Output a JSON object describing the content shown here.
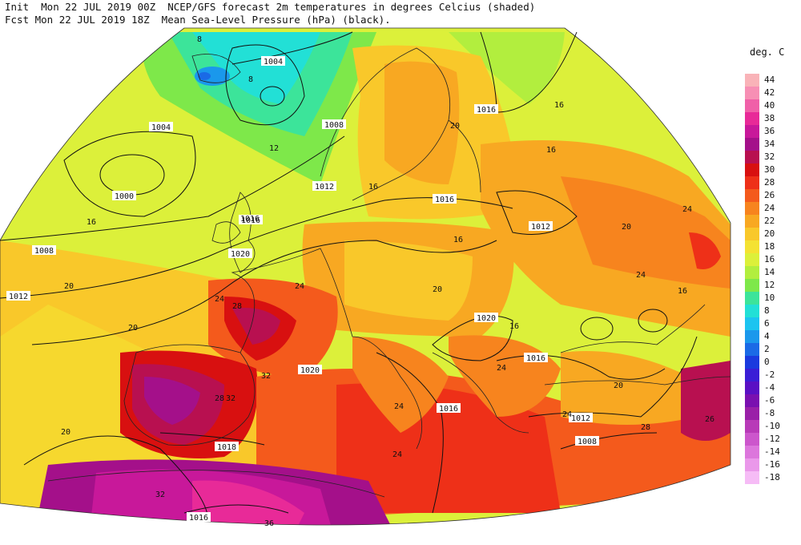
{
  "header": {
    "line1": "Init  Mon 22 JUL 2019 00Z  NCEP/GFS forecast 2m temperatures in degrees Celcius (shaded)",
    "line2": "Fcst Mon 22 JUL 2019 18Z  Mean Sea-Level Pressure (hPa) (black)."
  },
  "legend": {
    "title": "deg. C",
    "entries": [
      {
        "label": "44",
        "color": "#f9b3b8"
      },
      {
        "label": "42",
        "color": "#f78fb4"
      },
      {
        "label": "40",
        "color": "#f060a8"
      },
      {
        "label": "38",
        "color": "#e82a98"
      },
      {
        "label": "36",
        "color": "#c8189a"
      },
      {
        "label": "34",
        "color": "#a4108a"
      },
      {
        "label": "32",
        "color": "#b81050"
      },
      {
        "label": "30",
        "color": "#d81010"
      },
      {
        "label": "28",
        "color": "#ee3018"
      },
      {
        "label": "26",
        "color": "#f45a1c"
      },
      {
        "label": "24",
        "color": "#f7841e"
      },
      {
        "label": "22",
        "color": "#f8a822"
      },
      {
        "label": "20",
        "color": "#f9c82a"
      },
      {
        "label": "18",
        "color": "#f4e232"
      },
      {
        "label": "16",
        "color": "#dcf03a"
      },
      {
        "label": "14",
        "color": "#b2ee3e"
      },
      {
        "label": "12",
        "color": "#7ee84a"
      },
      {
        "label": "10",
        "color": "#3ce49a"
      },
      {
        "label": "8",
        "color": "#22e0d6"
      },
      {
        "label": "6",
        "color": "#1cc4f0"
      },
      {
        "label": "4",
        "color": "#1a98ec"
      },
      {
        "label": "2",
        "color": "#1a6ae6"
      },
      {
        "label": "0",
        "color": "#1a3ade"
      },
      {
        "label": "-2",
        "color": "#3a1ed6"
      },
      {
        "label": "-4",
        "color": "#5a10c4"
      },
      {
        "label": "-6",
        "color": "#7a10b0"
      },
      {
        "label": "-8",
        "color": "#9a20a8"
      },
      {
        "label": "-10",
        "color": "#b83ab8"
      },
      {
        "label": "-12",
        "color": "#cc56cc"
      },
      {
        "label": "-14",
        "color": "#dc76dc"
      },
      {
        "label": "-16",
        "color": "#ea98ea"
      },
      {
        "label": "-18",
        "color": "#f6bcf6"
      }
    ]
  },
  "pressure_labels": [
    "1004",
    "1004",
    "1000",
    "1008",
    "1008",
    "1012",
    "1012",
    "1016",
    "1016",
    "1016",
    "1020",
    "1020",
    "1016",
    "1012",
    "1016",
    "1016",
    "1020",
    "1016",
    "1012",
    "1008",
    "1018",
    "1016",
    "1012"
  ],
  "temperature_labels": [
    "8",
    "8",
    "12",
    "16",
    "16",
    "20",
    "20",
    "24",
    "28",
    "32",
    "28",
    "32",
    "20",
    "24",
    "24",
    "20",
    "16",
    "16",
    "20",
    "24",
    "24",
    "20",
    "16",
    "16",
    "24",
    "24",
    "28",
    "32",
    "36",
    "26",
    "24",
    "20",
    "16"
  ]
}
